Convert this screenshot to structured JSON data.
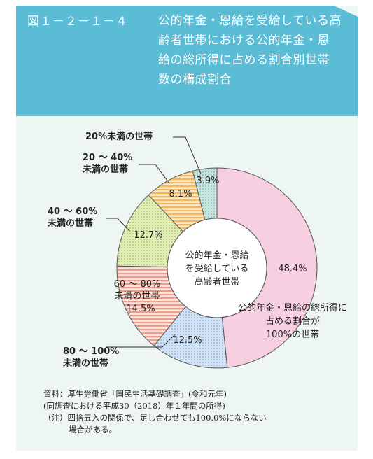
{
  "figure": {
    "number": "図１－２－１－４",
    "title": "公的年金・恩給を受給している高齢者世帯における公的年金・恩給の総所得に占める割合別世帯数の構成割合"
  },
  "colors": {
    "header": "#5bbcd6",
    "panel": "#eef6f3",
    "slice_100": "#f6cfe0",
    "slice_80": "#c9ddf0",
    "slice_60": "#f2a99b",
    "slice_40": "#d6e4a0",
    "slice_20": "#f5c27a",
    "slice_under20": "#b3dad3"
  },
  "chart_data": {
    "type": "pie",
    "style": "donut",
    "start": "12 o'clock, clockwise",
    "center_label": [
      "公的年金・恩給",
      "を受給している",
      "高齢者世帯"
    ],
    "slices": [
      {
        "key": "s100",
        "label_lines": [
          "公的年金・恩給の総所得に",
          "占める割合が",
          "100%の世帯"
        ],
        "value": 48.4,
        "value_label": "48.4%",
        "fill": "solid"
      },
      {
        "key": "s80",
        "label_lines": [
          "80 ～ 100%",
          "未満の世帯"
        ],
        "value": 12.5,
        "value_label": "12.5%",
        "fill": "dots"
      },
      {
        "key": "s60",
        "label_lines": [
          "60 ～ 80%",
          "未満の世帯"
        ],
        "value": 14.5,
        "value_label": "14.5%",
        "fill": "horizontal stripes"
      },
      {
        "key": "s40",
        "label_lines": [
          "40 ～ 60%",
          "未満の世帯"
        ],
        "value": 12.7,
        "value_label": "12.7%",
        "fill": "dots"
      },
      {
        "key": "s20",
        "label_lines": [
          "20 ～ 40%",
          "未満の世帯"
        ],
        "value": 8.1,
        "value_label": "8.1%",
        "fill": "horizontal stripes"
      },
      {
        "key": "sUnder20",
        "label_lines": [
          "20%未満の世帯"
        ],
        "value": 3.9,
        "value_label": "3.9%",
        "fill": "dots"
      }
    ]
  },
  "notes": {
    "source": "資料：厚生労働省「国民生活基礎調査」(令和元年)",
    "period": "(同調査における平成30（2018）年１年間の所得)",
    "note_line1": "（注）四捨五入の関係で、足し合わせても100.0%にならない",
    "note_line2": "場合がある。"
  }
}
